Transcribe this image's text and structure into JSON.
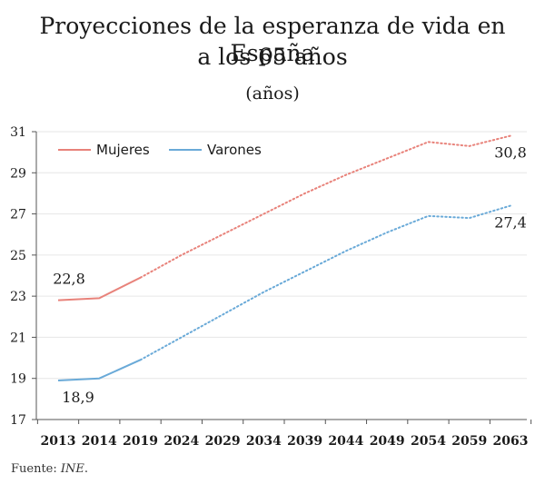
{
  "chart_data": {
    "type": "line",
    "title_line1": "Proyecciones de la esperanza de vida en España",
    "title_line2": "a los 65 años",
    "subtitle": "(años)",
    "categories": [
      "2013",
      "2014",
      "2019",
      "2024",
      "2029",
      "2034",
      "2039",
      "2044",
      "2049",
      "2054",
      "2059",
      "2063"
    ],
    "ylim": [
      17,
      31
    ],
    "yticks": [
      "17",
      "19",
      "21",
      "23",
      "25",
      "27",
      "29",
      "31"
    ],
    "grid": true,
    "legend_position": "top-left",
    "series": [
      {
        "name": "Mujeres",
        "color": "#e8827a",
        "values": [
          22.8,
          22.9,
          23.9,
          25.0,
          26.0,
          27.0,
          28.0,
          28.9,
          29.7,
          30.5,
          30.3,
          30.8
        ],
        "observed_until_index": 2,
        "labels": [
          {
            "index": 0,
            "text": "22,8"
          },
          {
            "index": 11,
            "text": "30,8"
          }
        ]
      },
      {
        "name": "Varones",
        "color": "#6aaad8",
        "values": [
          18.9,
          19.0,
          19.9,
          21.0,
          22.1,
          23.2,
          24.2,
          25.2,
          26.1,
          26.9,
          26.8,
          27.4
        ],
        "observed_until_index": 2,
        "labels": [
          {
            "index": 0,
            "text": "18,9"
          },
          {
            "index": 11,
            "text": "27,4"
          }
        ]
      }
    ]
  },
  "source": {
    "prefix": "Fuente: ",
    "name": "INE",
    "suffix": "."
  }
}
